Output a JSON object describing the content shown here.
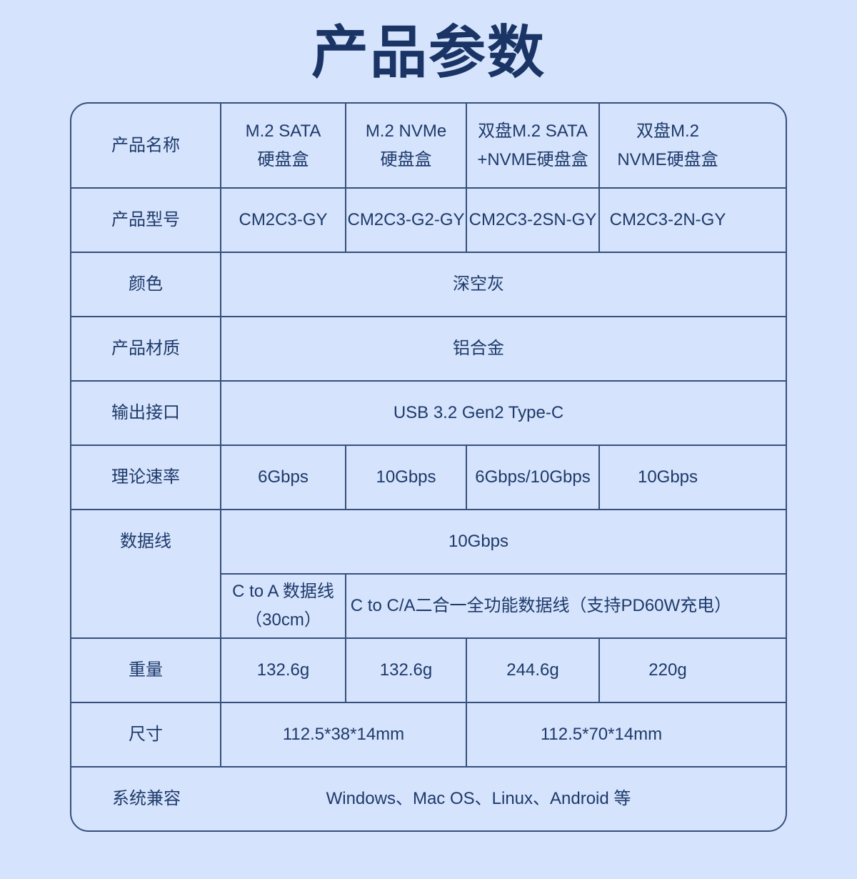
{
  "title": "产品参数",
  "colors": {
    "background": "#d6e3fc",
    "border": "#35507d",
    "text": "#1c3a6a",
    "title": "#1a3565"
  },
  "table": {
    "product_name": {
      "label": "产品名称",
      "cells": [
        {
          "l1": "M.2 SATA",
          "l2": "硬盘盒"
        },
        {
          "l1": "M.2 NVMe",
          "l2": "硬盘盒"
        },
        {
          "l1": "双盘M.2 SATA",
          "l2": "+NVME硬盘盒"
        },
        {
          "l1": "双盘M.2",
          "l2": "NVME硬盘盒"
        }
      ]
    },
    "model": {
      "label": "产品型号",
      "cells": [
        "CM2C3-GY",
        "CM2C3-G2-GY",
        "CM2C3-2SN-GY",
        "CM2C3-2N-GY"
      ]
    },
    "color": {
      "label": "颜色",
      "value": "深空灰"
    },
    "material": {
      "label": "产品材质",
      "value": "铝合金"
    },
    "interface": {
      "label": "输出接口",
      "value": "USB 3.2 Gen2 Type-C"
    },
    "speed": {
      "label": "理论速率",
      "cells": [
        "6Gbps",
        "10Gbps",
        "6Gbps/10Gbps",
        "10Gbps"
      ]
    },
    "cable": {
      "label": "数据线",
      "speed": "10Gbps",
      "col1_line1": "C to A 数据线",
      "col1_line2": "（30cm）",
      "rest": "C to C/A二合一全功能数据线（支持PD60W充电）"
    },
    "weight": {
      "label": "重量",
      "cells": [
        "132.6g",
        "132.6g",
        "244.6g",
        "220g"
      ]
    },
    "size": {
      "label": "尺寸",
      "left": "112.5*38*14mm",
      "right": "112.5*70*14mm"
    },
    "os": {
      "label": "系统兼容",
      "value": "Windows、Mac OS、Linux、Android 等"
    }
  }
}
